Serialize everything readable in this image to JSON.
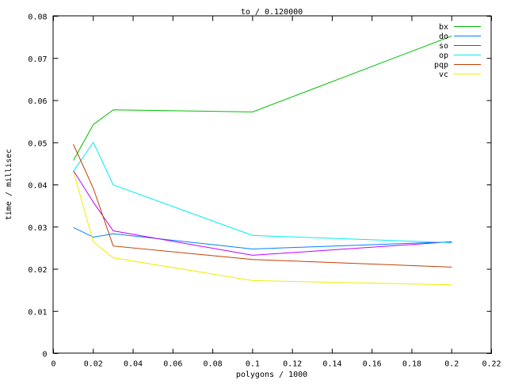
{
  "chart_data": {
    "type": "line",
    "title": "to / 0.120000",
    "xlabel": "polygons / 1000",
    "ylabel": "time / millisec",
    "xlim": [
      0,
      0.22
    ],
    "ylim": [
      0,
      0.08
    ],
    "xticks": [
      "0",
      "0.02",
      "0.04",
      "0.06",
      "0.08",
      "0.1",
      "0.12",
      "0.14",
      "0.16",
      "0.18",
      "0.2",
      "0.22"
    ],
    "yticks": [
      "0",
      "0.01",
      "0.02",
      "0.03",
      "0.04",
      "0.05",
      "0.06",
      "0.07",
      "0.08"
    ],
    "grid": false,
    "legend_position": "top-right",
    "x": [
      0.01,
      0.02,
      0.03,
      0.1,
      0.2
    ],
    "series": [
      {
        "name": "bx",
        "color": "#00c000",
        "values": [
          0.0458,
          0.0543,
          0.0578,
          0.0573,
          0.0753
        ]
      },
      {
        "name": "do",
        "color": "#0080ff",
        "values": [
          0.0299,
          0.0276,
          0.0284,
          0.0248,
          0.0265
        ]
      },
      {
        "name": "so",
        "color": "#c000ff",
        "values": [
          0.0434,
          0.0359,
          0.0291,
          0.0233,
          0.0265
        ]
      },
      {
        "name": "op",
        "color": "#00eeee",
        "values": [
          0.0432,
          0.0501,
          0.04,
          0.028,
          0.0263
        ]
      },
      {
        "name": "pqp",
        "color": "#c04000",
        "values": [
          0.0496,
          0.0392,
          0.0255,
          0.0223,
          0.0205
        ]
      },
      {
        "name": "vc",
        "color": "#eeee00",
        "values": [
          0.0432,
          0.0265,
          0.0227,
          0.0173,
          0.0163
        ]
      }
    ]
  }
}
